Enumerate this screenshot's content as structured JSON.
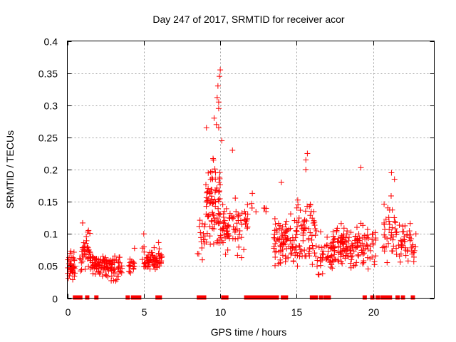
{
  "chart_data": {
    "type": "scatter",
    "title": "Day 247 of 2017, SRMTID for receiver acor",
    "xlabel": "GPS time / hours",
    "ylabel": "SRMTID / TECUs",
    "xlim": [
      0,
      24
    ],
    "ylim": [
      0,
      0.4
    ],
    "xticks": [
      0,
      5,
      10,
      15,
      20
    ],
    "xtick_labels": [
      "0",
      "5",
      "10",
      "15",
      "20"
    ],
    "yticks": [
      0,
      0.05,
      0.1,
      0.15,
      0.2,
      0.25,
      0.3,
      0.35,
      0.4
    ],
    "ytick_labels": [
      "0",
      "0.05",
      "0.1",
      "0.15",
      "0.2",
      "0.25",
      "0.3",
      "0.35",
      "0.4"
    ],
    "grid": true,
    "legend": "none",
    "marker": "plus",
    "color": "#ff0000",
    "series": [
      {
        "name": "SRMTID",
        "clusters": [
          {
            "x_range": [
              0.0,
              0.5
            ],
            "y_center": 0.05,
            "y_spread": 0.02,
            "y_max": 0.095,
            "n": 45
          },
          {
            "x_range": [
              0.8,
              1.5
            ],
            "y_center": 0.07,
            "y_spread": 0.025,
            "y_max": 0.117,
            "n": 40
          },
          {
            "x_range": [
              1.5,
              3.6
            ],
            "y_center": 0.05,
            "y_spread": 0.015,
            "y_max": 0.09,
            "n": 120
          },
          {
            "x_range": [
              4.0,
              4.4
            ],
            "y_center": 0.055,
            "y_spread": 0.015,
            "y_max": 0.09,
            "n": 18
          },
          {
            "x_range": [
              4.9,
              6.2
            ],
            "y_center": 0.062,
            "y_spread": 0.015,
            "y_max": 0.1,
            "n": 70
          },
          {
            "x_range": [
              8.5,
              9.0
            ],
            "y_center": 0.09,
            "y_spread": 0.03,
            "y_max": 0.13,
            "n": 15
          },
          {
            "x_range": [
              9.0,
              10.0
            ],
            "y_center": 0.14,
            "y_spread": 0.06,
            "y_max": 0.355,
            "n": 90
          },
          {
            "x_range": [
              10.0,
              11.8
            ],
            "y_center": 0.11,
            "y_spread": 0.03,
            "y_max": 0.23,
            "n": 80
          },
          {
            "x_range": [
              12.0,
              13.0
            ],
            "y_center": 0.14,
            "y_spread": 0.015,
            "y_max": 0.165,
            "n": 6
          },
          {
            "x_range": [
              13.5,
              15.0
            ],
            "y_center": 0.085,
            "y_spread": 0.03,
            "y_max": 0.18,
            "n": 90
          },
          {
            "x_range": [
              15.0,
              16.3
            ],
            "y_center": 0.1,
            "y_spread": 0.04,
            "y_max": 0.225,
            "n": 70
          },
          {
            "x_range": [
              16.3,
              17.3
            ],
            "y_center": 0.07,
            "y_spread": 0.025,
            "y_max": 0.165,
            "n": 40
          },
          {
            "x_range": [
              17.3,
              19.5
            ],
            "y_center": 0.08,
            "y_spread": 0.025,
            "y_max": 0.203,
            "n": 130
          },
          {
            "x_range": [
              19.5,
              20.2
            ],
            "y_center": 0.085,
            "y_spread": 0.03,
            "y_max": 0.15,
            "n": 25
          },
          {
            "x_range": [
              20.6,
              21.6
            ],
            "y_center": 0.1,
            "y_spread": 0.04,
            "y_max": 0.195,
            "n": 40
          },
          {
            "x_range": [
              21.6,
              22.8
            ],
            "y_center": 0.085,
            "y_spread": 0.025,
            "y_max": 0.13,
            "n": 45
          }
        ],
        "notable_points": [
          {
            "x": 10.0,
            "y": 0.355
          },
          {
            "x": 9.95,
            "y": 0.345
          },
          {
            "x": 9.85,
            "y": 0.33
          },
          {
            "x": 9.8,
            "y": 0.312
          },
          {
            "x": 9.9,
            "y": 0.305
          },
          {
            "x": 9.9,
            "y": 0.295
          },
          {
            "x": 9.6,
            "y": 0.28
          },
          {
            "x": 9.75,
            "y": 0.27
          },
          {
            "x": 9.9,
            "y": 0.265
          },
          {
            "x": 10.1,
            "y": 0.245
          },
          {
            "x": 9.1,
            "y": 0.265
          },
          {
            "x": 10.8,
            "y": 0.23
          },
          {
            "x": 15.7,
            "y": 0.225
          },
          {
            "x": 15.6,
            "y": 0.215
          },
          {
            "x": 15.6,
            "y": 0.2
          },
          {
            "x": 19.2,
            "y": 0.203
          },
          {
            "x": 21.2,
            "y": 0.195
          },
          {
            "x": 21.4,
            "y": 0.185
          },
          {
            "x": 12.1,
            "y": 0.163
          },
          {
            "x": 12.9,
            "y": 0.14
          },
          {
            "x": 14.0,
            "y": 0.18
          },
          {
            "x": 1.0,
            "y": 0.117
          },
          {
            "x": 5.0,
            "y": 0.1
          },
          {
            "x": 22.8,
            "y": 0.1
          }
        ],
        "zero_values_x": [
          0.5,
          0.6,
          0.75,
          0.85,
          1.3,
          1.9,
          3.95,
          4.3,
          4.45,
          4.7,
          5.9,
          6.05,
          8.6,
          8.8,
          8.95,
          10.2,
          10.4,
          11.7,
          11.85,
          12.0,
          12.15,
          12.3,
          12.5,
          12.7,
          12.85,
          13.0,
          13.2,
          13.4,
          13.55,
          13.7,
          14.1,
          14.3,
          16.0,
          16.1,
          16.25,
          16.6,
          16.9,
          17.1,
          19.45,
          19.95,
          20.3,
          20.6,
          20.85,
          21.1,
          21.6,
          21.95,
          22.6
        ]
      }
    ]
  }
}
